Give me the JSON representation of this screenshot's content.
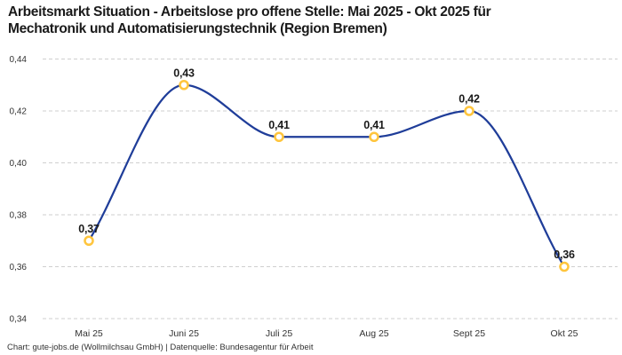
{
  "title": {
    "lines": [
      "Arbeitsmarkt Situation - Arbeitslose pro offene Stelle: Mai 2025 - Okt 2025 für",
      "Mechatronik und Automatisierungstechnik (Region Bremen)"
    ],
    "full": "Arbeitsmarkt Situation - Arbeitslose pro offene Stelle: Mai 2025 - Okt 2025 für Mechatronik und Automatisierungstechnik (Region Bremen)"
  },
  "footer": {
    "text": "Chart: gute-jobs.de (Wollmilchsau GmbH) | Datenquelle: Bundesagentur für Arbeit"
  },
  "chart_data": {
    "type": "line",
    "title": "Arbeitsmarkt Situation - Arbeitslose pro offene Stelle: Mai 2025 - Okt 2025 für Mechatronik und Automatisierungstechnik (Region Bremen)",
    "categories": [
      "Mai 25",
      "Juni 25",
      "Juli 25",
      "Aug 25",
      "Sept 25",
      "Okt 25"
    ],
    "values": [
      0.37,
      0.43,
      0.41,
      0.41,
      0.42,
      0.36
    ],
    "point_labels": [
      "0,37",
      "0,43",
      "0,41",
      "0,41",
      "0,42",
      "0,36"
    ],
    "xlabel": "",
    "ylabel": "",
    "ylim": [
      0.34,
      0.44
    ],
    "y_ticks": {
      "values": [
        0.44,
        0.42,
        0.4,
        0.38,
        0.36,
        0.34
      ],
      "labels": [
        "0,44",
        "0,42",
        "0,40",
        "0,38",
        "0,36",
        "0,34"
      ]
    },
    "grid": "horizontal-dashed",
    "legend": "none",
    "curve": "monotone-smooth",
    "marker": "open-circle",
    "colors": {
      "line": "#1F3D99",
      "marker_stroke": "#FFC53D",
      "marker_fill": "#FFFFFF",
      "grid": "#CFCFCF",
      "title_text": "#1A1A1A",
      "tick_text": "#333333",
      "point_label_text": "#1A1A1A",
      "background": "#FFFFFF"
    }
  }
}
